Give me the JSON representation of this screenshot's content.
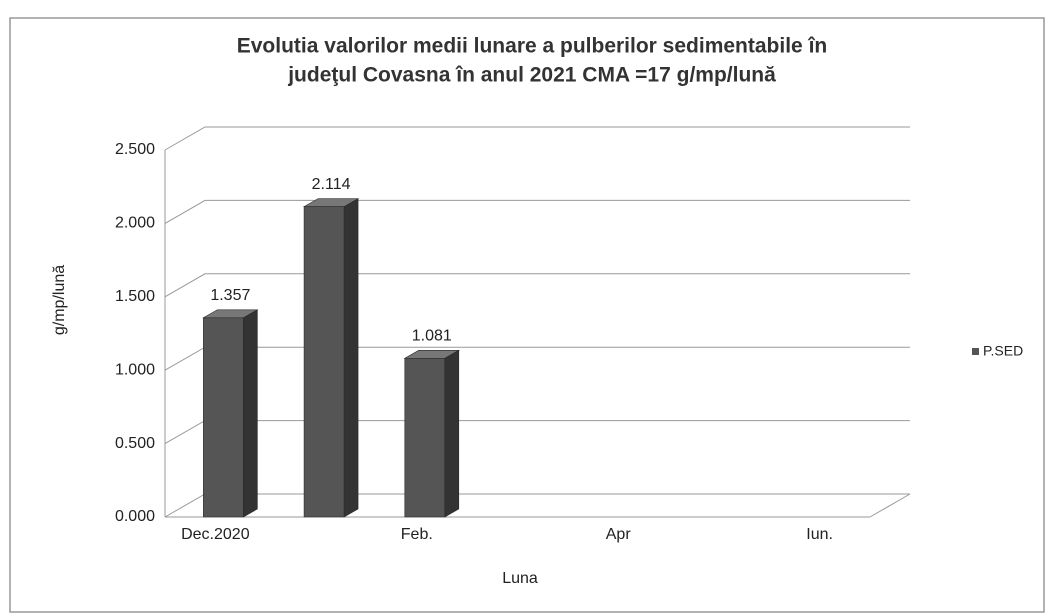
{
  "chart_data": {
    "type": "bar3d",
    "title": [
      "Evolutia valorilor medii lunare a pulberilor sedimentabile în",
      "judeţul Covasna  în anul 2021   CMA =17 g/mp/lună"
    ],
    "xlabel": "Luna",
    "ylabel": "g/mp/lună",
    "categories": [
      "Dec.2020",
      null,
      "Feb.",
      null,
      "Apr",
      null,
      "Iun."
    ],
    "series": [
      {
        "name": "P.SED",
        "color": "#555555",
        "values": [
          1.357,
          2.114,
          1.081,
          null,
          null,
          null,
          null
        ]
      }
    ],
    "ylim": [
      0,
      2.5
    ],
    "yticks": [
      {
        "value": 0,
        "label": "0.000"
      },
      {
        "value": 0.5,
        "label": "0.500"
      },
      {
        "value": 1,
        "label": "1.000"
      },
      {
        "value": 1.5,
        "label": "1.500"
      },
      {
        "value": 2,
        "label": "2.000"
      },
      {
        "value": 2.5,
        "label": "2.500"
      }
    ],
    "grid": true,
    "legend": "right"
  }
}
